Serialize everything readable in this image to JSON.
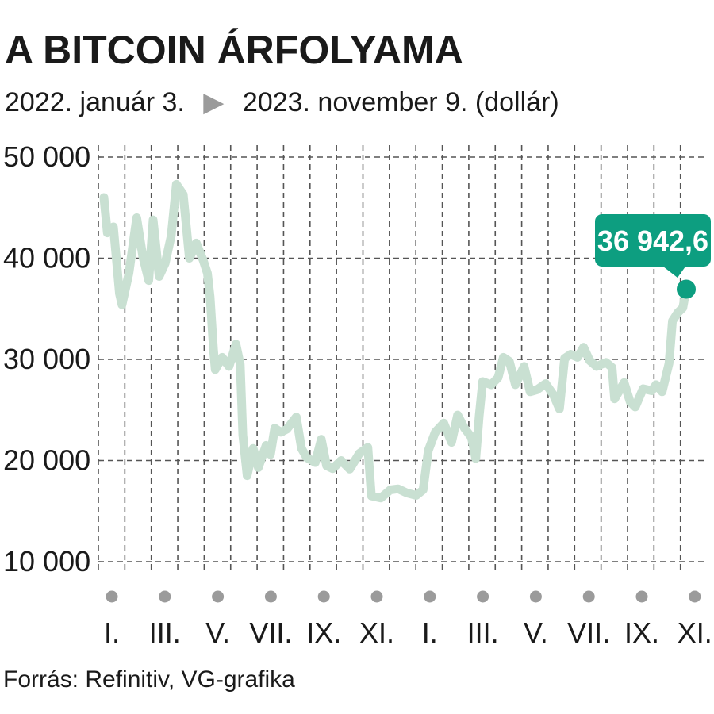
{
  "chart_data": {
    "type": "line",
    "title": "A BITCOIN ÁRFOLYAMA",
    "subtitle": {
      "start": "2022. január 3.",
      "arrow": "▶",
      "end": "2023. november 9. (dollár)"
    },
    "x_range": [
      "2022-01-03",
      "2023-11-09"
    ],
    "ylim": [
      10000,
      50000
    ],
    "y_ticks": [
      10000,
      20000,
      30000,
      40000,
      50000
    ],
    "y_tick_labels": [
      "10 000",
      "20 000",
      "30 000",
      "40 000",
      "50 000"
    ],
    "x_tick_labels": [
      "I.",
      "III.",
      "V.",
      "VII.",
      "IX.",
      "XI.",
      "I.",
      "III.",
      "V.",
      "VII.",
      "IX.",
      "XI."
    ],
    "grid": true,
    "last_value_label": "36 942,6",
    "source": "Forrás: Refinitiv, VG-grafika",
    "colors": {
      "line": "#c9e0d2",
      "marker": "#0d9e80",
      "callout_bg": "#0d9e80",
      "callout_text": "#ffffff",
      "grid": "#555555",
      "month_dot": "#9b9b9b"
    },
    "series": [
      {
        "values": [
          [
            "2022-01-03",
            46000
          ],
          [
            "2022-01-07",
            42500
          ],
          [
            "2022-01-14",
            43100
          ],
          [
            "2022-01-21",
            36500
          ],
          [
            "2022-01-24",
            35400
          ],
          [
            "2022-02-01",
            38500
          ],
          [
            "2022-02-10",
            44000
          ],
          [
            "2022-02-17",
            40200
          ],
          [
            "2022-02-24",
            37800
          ],
          [
            "2022-03-01",
            43800
          ],
          [
            "2022-03-08",
            38200
          ],
          [
            "2022-03-15",
            39500
          ],
          [
            "2022-03-22",
            42200
          ],
          [
            "2022-03-28",
            47300
          ],
          [
            "2022-04-05",
            46300
          ],
          [
            "2022-04-12",
            40000
          ],
          [
            "2022-04-20",
            41500
          ],
          [
            "2022-04-28",
            39800
          ],
          [
            "2022-05-03",
            38500
          ],
          [
            "2022-05-06",
            36200
          ],
          [
            "2022-05-10",
            31000
          ],
          [
            "2022-05-12",
            29000
          ],
          [
            "2022-05-20",
            30200
          ],
          [
            "2022-05-28",
            29300
          ],
          [
            "2022-06-05",
            31500
          ],
          [
            "2022-06-10",
            29500
          ],
          [
            "2022-06-13",
            22500
          ],
          [
            "2022-06-18",
            18500
          ],
          [
            "2022-06-25",
            21200
          ],
          [
            "2022-07-01",
            19300
          ],
          [
            "2022-07-10",
            21500
          ],
          [
            "2022-07-15",
            20600
          ],
          [
            "2022-07-20",
            23200
          ],
          [
            "2022-07-27",
            22800
          ],
          [
            "2022-08-03",
            23100
          ],
          [
            "2022-08-14",
            24300
          ],
          [
            "2022-08-20",
            21200
          ],
          [
            "2022-08-26",
            20300
          ],
          [
            "2022-09-05",
            19800
          ],
          [
            "2022-09-12",
            22100
          ],
          [
            "2022-09-18",
            19500
          ],
          [
            "2022-09-25",
            19200
          ],
          [
            "2022-10-05",
            20000
          ],
          [
            "2022-10-15",
            19150
          ],
          [
            "2022-10-26",
            20700
          ],
          [
            "2022-11-05",
            21300
          ],
          [
            "2022-11-09",
            16500
          ],
          [
            "2022-11-20",
            16300
          ],
          [
            "2022-12-01",
            17100
          ],
          [
            "2022-12-10",
            17200
          ],
          [
            "2022-12-20",
            16800
          ],
          [
            "2022-12-31",
            16550
          ],
          [
            "2023-01-08",
            17100
          ],
          [
            "2023-01-14",
            21000
          ],
          [
            "2023-01-22",
            22800
          ],
          [
            "2023-02-01",
            23700
          ],
          [
            "2023-02-10",
            21800
          ],
          [
            "2023-02-17",
            24500
          ],
          [
            "2023-02-25",
            23200
          ],
          [
            "2023-03-05",
            22300
          ],
          [
            "2023-03-10",
            20200
          ],
          [
            "2023-03-14",
            24400
          ],
          [
            "2023-03-18",
            27800
          ],
          [
            "2023-03-28",
            27500
          ],
          [
            "2023-04-05",
            28200
          ],
          [
            "2023-04-11",
            30200
          ],
          [
            "2023-04-18",
            29800
          ],
          [
            "2023-04-25",
            27500
          ],
          [
            "2023-05-05",
            29300
          ],
          [
            "2023-05-12",
            26800
          ],
          [
            "2023-05-20",
            27000
          ],
          [
            "2023-05-30",
            27600
          ],
          [
            "2023-06-08",
            26500
          ],
          [
            "2023-06-15",
            25100
          ],
          [
            "2023-06-21",
            30100
          ],
          [
            "2023-06-28",
            30500
          ],
          [
            "2023-07-06",
            30200
          ],
          [
            "2023-07-13",
            31200
          ],
          [
            "2023-07-20",
            29900
          ],
          [
            "2023-07-28",
            29300
          ],
          [
            "2023-08-08",
            29700
          ],
          [
            "2023-08-15",
            29200
          ],
          [
            "2023-08-18",
            26100
          ],
          [
            "2023-08-29",
            27700
          ],
          [
            "2023-09-05",
            25800
          ],
          [
            "2023-09-11",
            25300
          ],
          [
            "2023-09-20",
            27100
          ],
          [
            "2023-09-30",
            26900
          ],
          [
            "2023-10-05",
            27500
          ],
          [
            "2023-10-12",
            26800
          ],
          [
            "2023-10-20",
            29600
          ],
          [
            "2023-10-24",
            33800
          ],
          [
            "2023-10-30",
            34600
          ],
          [
            "2023-11-05",
            35100
          ],
          [
            "2023-11-09",
            36942.6
          ]
        ]
      }
    ]
  }
}
